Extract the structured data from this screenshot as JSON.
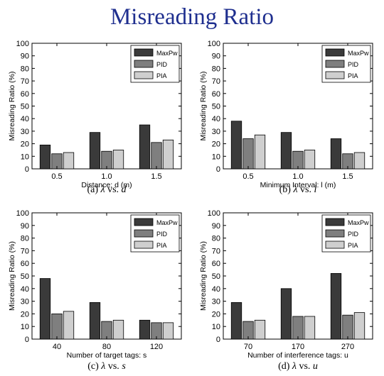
{
  "slide": {
    "title": "Misreading Ratio"
  },
  "colors": {
    "title": "#1f2f8f",
    "series": [
      "#3a3a3a",
      "#7f7f7f",
      "#cfcfcf"
    ]
  },
  "chart_data": [
    {
      "type": "bar",
      "caption": {
        "label": "(a)",
        "vs": "vs.",
        "var": "d"
      },
      "categories": [
        "0.5",
        "1.0",
        "1.5"
      ],
      "xlabel": "Distance: d (m)",
      "ylabel": "Misreading Ratio (%)",
      "ylim": [
        0,
        100
      ],
      "yticks": [
        0,
        10,
        20,
        30,
        40,
        50,
        60,
        70,
        80,
        90,
        100
      ],
      "legend": "top-right",
      "series": [
        {
          "name": "MaxPw",
          "values": [
            19,
            29,
            35
          ]
        },
        {
          "name": "PID",
          "values": [
            12,
            14,
            21
          ]
        },
        {
          "name": "PIA",
          "values": [
            13,
            15,
            23
          ]
        }
      ]
    },
    {
      "type": "bar",
      "caption": {
        "label": "(b)",
        "vs": "vs.",
        "var": "l"
      },
      "categories": [
        "0.5",
        "1.0",
        "1.5"
      ],
      "xlabel": "Minimum Interval: l (m)",
      "ylabel": "Misreading Ratio (%)",
      "ylim": [
        0,
        100
      ],
      "yticks": [
        0,
        10,
        20,
        30,
        40,
        50,
        60,
        70,
        80,
        90,
        100
      ],
      "legend": "top-right",
      "series": [
        {
          "name": "MaxPw",
          "values": [
            38,
            29,
            24
          ]
        },
        {
          "name": "PID",
          "values": [
            24,
            14,
            12
          ]
        },
        {
          "name": "PIA",
          "values": [
            27,
            15,
            13
          ]
        }
      ]
    },
    {
      "type": "bar",
      "caption": {
        "label": "(c)",
        "vs": "vs.",
        "var": "s"
      },
      "categories": [
        "40",
        "80",
        "120"
      ],
      "xlabel": "Number of target tags: s",
      "ylabel": "Misreading Ratio (%)",
      "ylim": [
        0,
        100
      ],
      "yticks": [
        0,
        10,
        20,
        30,
        40,
        50,
        60,
        70,
        80,
        90,
        100
      ],
      "legend": "top-right",
      "series": [
        {
          "name": "MaxPw",
          "values": [
            48,
            29,
            15
          ]
        },
        {
          "name": "PID",
          "values": [
            20,
            14,
            13
          ]
        },
        {
          "name": "PIA",
          "values": [
            22,
            15,
            13
          ]
        }
      ]
    },
    {
      "type": "bar",
      "caption": {
        "label": "(d)",
        "vs": "vs.",
        "var": "u"
      },
      "categories": [
        "70",
        "170",
        "270"
      ],
      "xlabel": "Number of interference tags: u",
      "ylabel": "Misreading Ratio (%)",
      "ylim": [
        0,
        100
      ],
      "yticks": [
        0,
        10,
        20,
        30,
        40,
        50,
        60,
        70,
        80,
        90,
        100
      ],
      "legend": "top-right",
      "series": [
        {
          "name": "MaxPw",
          "values": [
            29,
            40,
            52
          ]
        },
        {
          "name": "PID",
          "values": [
            14,
            18,
            19
          ]
        },
        {
          "name": "PIA",
          "values": [
            15,
            18,
            21
          ]
        }
      ]
    }
  ]
}
